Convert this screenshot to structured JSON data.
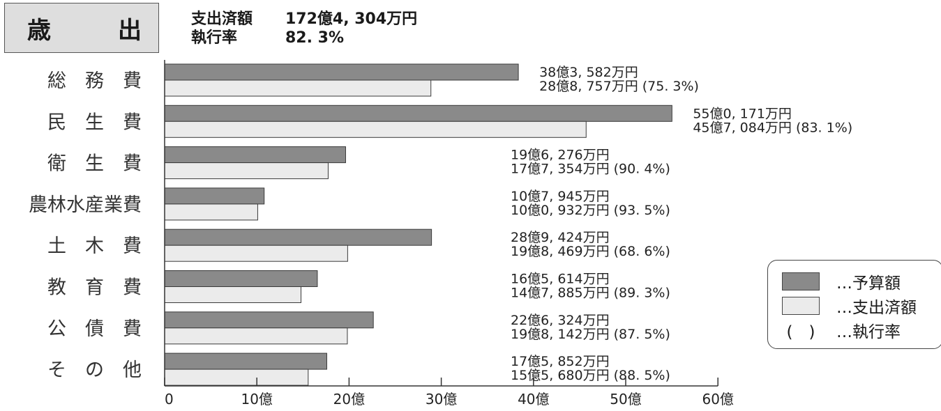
{
  "header": {
    "title_left": "歳",
    "title_right": "出",
    "summary": [
      {
        "label": "支出済額",
        "value": "172億4, 304万円"
      },
      {
        "label": "執行率",
        "value": "82. 3%"
      }
    ]
  },
  "legend": {
    "budget_label": "…予算額",
    "spent_label": "…支出済額",
    "rate_symbol": "(　)",
    "rate_label": "…執行率"
  },
  "colors": {
    "budget": "#8a8a8a",
    "spent": "#ebebeb",
    "axis": "#333333"
  },
  "chart_data": {
    "type": "bar",
    "orientation": "horizontal",
    "title": "歳出",
    "categories": [
      "総　務　費",
      "民　生　費",
      "衛　生　費",
      "農林水産業費",
      "土　木　費",
      "教　育　費",
      "公　債　費",
      "そ　の　他"
    ],
    "series": [
      {
        "name": "予算額",
        "values": [
          38.3582,
          55.0171,
          19.6276,
          10.7945,
          28.9424,
          16.5614,
          22.6324,
          17.5852
        ]
      },
      {
        "name": "支出済額",
        "values": [
          28.8757,
          45.7084,
          17.7354,
          10.0932,
          19.8469,
          14.7885,
          19.8142,
          15.568
        ]
      }
    ],
    "budget_labels": [
      "38億3, 582万円",
      "55億0, 171万円",
      "19億6, 276万円",
      "10億7, 945万円",
      "28億9, 424万円",
      "16億5, 614万円",
      "22億6, 324万円",
      "17億5, 852万円"
    ],
    "spent_labels": [
      "28億8, 757万円 (75. 3%)",
      "45億7, 084万円 (83. 1%)",
      "17億7, 354万円 (90. 4%)",
      "10億0, 932万円 (93. 5%)",
      "19億8, 469万円 (68. 6%)",
      "14億7, 885万円 (89. 3%)",
      "19億8, 142万円 (87. 5%)",
      "15億5, 680万円 (88. 5%)"
    ],
    "xticks": [
      "0",
      "10億",
      "20億",
      "30億",
      "40億",
      "50億",
      "60億"
    ],
    "xlim": [
      0,
      60
    ],
    "grid": false
  }
}
